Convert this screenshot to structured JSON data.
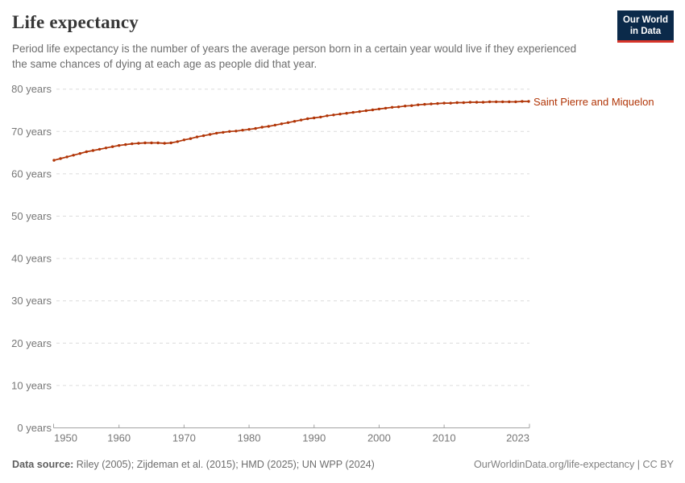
{
  "header": {
    "title": "Life expectancy",
    "subtitle": "Period life expectancy is the number of years the average person born in a certain year would live if they experienced the same chances of dying at each age as people did that year."
  },
  "logo": {
    "line1": "Our World",
    "line2": "in Data"
  },
  "chart_data": {
    "type": "line",
    "title": "Life expectancy",
    "entity": "Saint Pierre and Miquelon",
    "xlabel": "",
    "ylabel": "",
    "xlim": [
      1950,
      2023
    ],
    "ylim": [
      0,
      80
    ],
    "grid": "dashed-horizontal",
    "legend": "end-of-line-label",
    "xticks": [
      1950,
      1960,
      1970,
      1980,
      1990,
      2000,
      2010,
      2023
    ],
    "yticks": [
      0,
      10,
      20,
      30,
      40,
      50,
      60,
      70,
      80
    ],
    "ytick_suffix": " years",
    "x": [
      1950,
      1951,
      1952,
      1953,
      1954,
      1955,
      1956,
      1957,
      1958,
      1959,
      1960,
      1961,
      1962,
      1963,
      1964,
      1965,
      1966,
      1967,
      1968,
      1969,
      1970,
      1971,
      1972,
      1973,
      1974,
      1975,
      1976,
      1977,
      1978,
      1979,
      1980,
      1981,
      1982,
      1983,
      1984,
      1985,
      1986,
      1987,
      1988,
      1989,
      1990,
      1991,
      1992,
      1993,
      1994,
      1995,
      1996,
      1997,
      1998,
      1999,
      2000,
      2001,
      2002,
      2003,
      2004,
      2005,
      2006,
      2007,
      2008,
      2009,
      2010,
      2011,
      2012,
      2013,
      2014,
      2015,
      2016,
      2017,
      2018,
      2019,
      2020,
      2021,
      2022,
      2023
    ],
    "series": [
      {
        "name": "Saint Pierre and Miquelon",
        "color": "#B13507",
        "values": [
          63.2,
          63.6,
          64.0,
          64.4,
          64.8,
          65.2,
          65.5,
          65.8,
          66.1,
          66.4,
          66.7,
          66.9,
          67.1,
          67.2,
          67.3,
          67.3,
          67.3,
          67.2,
          67.3,
          67.6,
          68.0,
          68.3,
          68.7,
          69.0,
          69.3,
          69.6,
          69.8,
          70.0,
          70.1,
          70.3,
          70.5,
          70.7,
          71.0,
          71.2,
          71.5,
          71.8,
          72.1,
          72.4,
          72.7,
          73.0,
          73.2,
          73.4,
          73.7,
          73.9,
          74.1,
          74.3,
          74.5,
          74.7,
          74.9,
          75.1,
          75.3,
          75.5,
          75.7,
          75.8,
          76.0,
          76.1,
          76.3,
          76.4,
          76.5,
          76.6,
          76.7,
          76.7,
          76.8,
          76.8,
          76.9,
          76.9,
          76.9,
          77.0,
          77.0,
          77.0,
          77.0,
          77.0,
          77.1,
          77.1
        ]
      }
    ]
  },
  "footer": {
    "datasource_label": "Data source:",
    "datasource_text": " Riley (2005); Zijdeman et al. (2015); HMD (2025); UN WPP (2024)",
    "credit": "OurWorldinData.org/life-expectancy | CC BY"
  },
  "colors": {
    "accent": "#B13507",
    "logo_navy": "#0b2a4a",
    "logo_red": "#d8352a",
    "gridline": "#dcdcdc",
    "axis_line": "#a3a3a3",
    "tick_label": "#777777"
  }
}
